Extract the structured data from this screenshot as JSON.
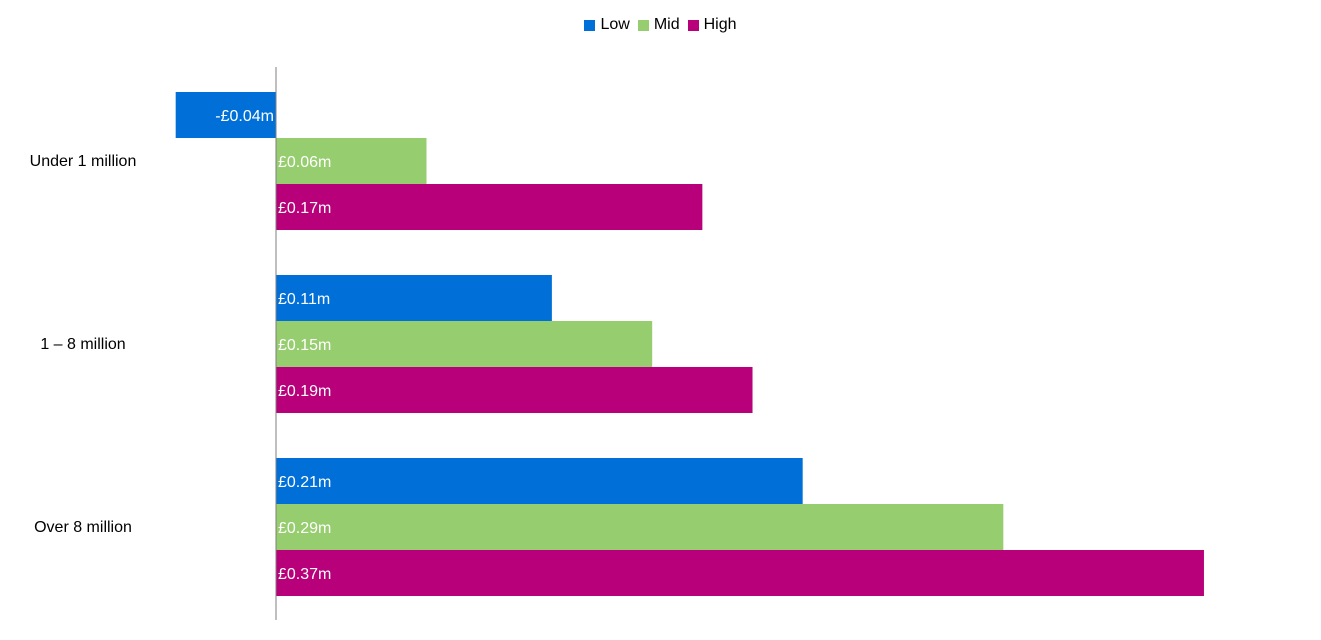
{
  "chart_data": {
    "type": "bar",
    "orientation": "horizontal",
    "categories": [
      "Under 1 million",
      "1 – 8 million",
      "Over 8 million"
    ],
    "series": [
      {
        "name": "Low",
        "color": "#0070d8",
        "values": [
          -0.04,
          0.11,
          0.21
        ],
        "labels": [
          "-£0.04m",
          "£0.11m",
          "£0.21m"
        ]
      },
      {
        "name": "Mid",
        "color": "#96cd6e",
        "values": [
          0.06,
          0.15,
          0.29
        ],
        "labels": [
          "£0.06m",
          "£0.15m",
          "£0.29m"
        ]
      },
      {
        "name": "High",
        "color": "#b7007a",
        "values": [
          0.17,
          0.19,
          0.37
        ],
        "labels": [
          "£0.17m",
          "£0.19m",
          "£0.37m"
        ]
      }
    ],
    "xlim": [
      -0.04,
      0.37
    ],
    "grid": false,
    "legend_position": "top-center",
    "axis_line_color": "#7f7f7f"
  }
}
